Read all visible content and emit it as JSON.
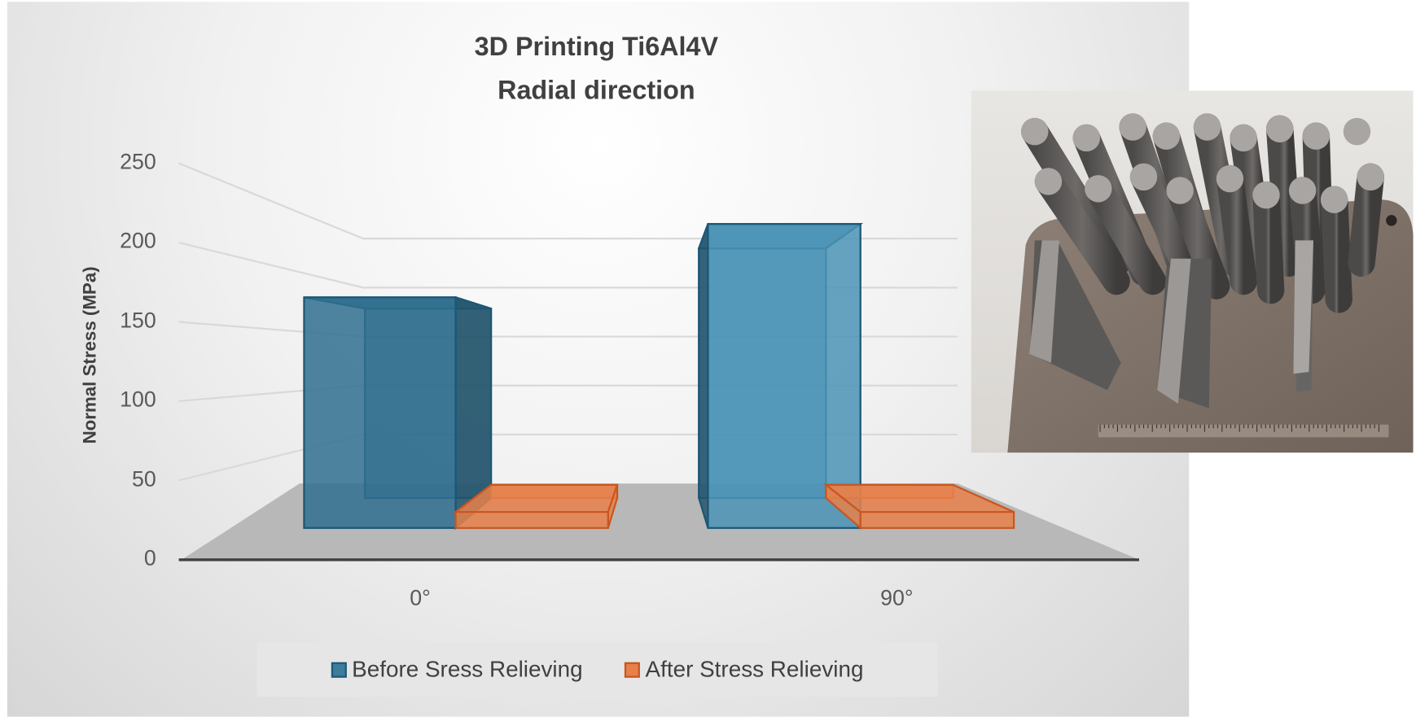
{
  "chart_data": {
    "type": "bar",
    "subtype": "3d-column",
    "title": [
      "3D Printing Ti6Al4V",
      "Radial direction"
    ],
    "xlabel": "",
    "ylabel": "Normal Stress (MPa)",
    "ylim": [
      0,
      250
    ],
    "yticks": [
      "0",
      "50",
      "100",
      "150",
      "200",
      "250"
    ],
    "categories": [
      "0°",
      "90°"
    ],
    "series": [
      {
        "name": "Before Sress Relieving",
        "values": [
          173,
          228
        ],
        "color": "#3d7c9a"
      },
      {
        "name": "After Stress Relieving",
        "values": [
          12,
          12
        ],
        "color": "#e8804a"
      }
    ],
    "grid": true,
    "legend_position": "bottom"
  },
  "photo": {
    "description_icon": "ti6al4v-printed-specimens-photo"
  }
}
